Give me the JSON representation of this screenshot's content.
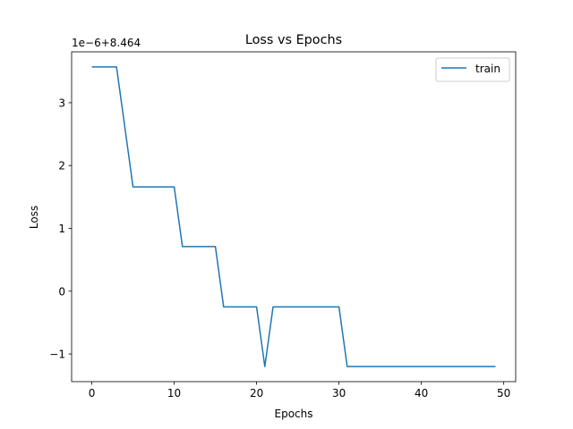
{
  "chart_data": {
    "type": "line",
    "title": "Loss vs Epochs",
    "xlabel": "Epochs",
    "ylabel": "Loss",
    "offset_label": "1e−6+8.464",
    "xlim": [
      -2.45,
      51.45
    ],
    "ylim": [
      -1.44,
      3.81
    ],
    "xticks": [
      0,
      10,
      20,
      30,
      40,
      50
    ],
    "xtick_labels": [
      "0",
      "10",
      "20",
      "30",
      "40",
      "50"
    ],
    "yticks": [
      -1,
      0,
      1,
      2,
      3
    ],
    "ytick_labels": [
      "−1",
      "0",
      "1",
      "2",
      "3"
    ],
    "grid": false,
    "legend": {
      "location": "upper right",
      "entries": [
        "train"
      ]
    },
    "series": [
      {
        "name": "train",
        "color": "#1f77b4",
        "x": [
          0,
          1,
          2,
          3,
          4,
          5,
          6,
          7,
          8,
          9,
          10,
          11,
          12,
          13,
          14,
          15,
          16,
          17,
          18,
          19,
          20,
          21,
          22,
          23,
          24,
          25,
          26,
          27,
          28,
          29,
          30,
          31,
          32,
          33,
          34,
          35,
          36,
          37,
          38,
          39,
          40,
          41,
          42,
          43,
          44,
          45,
          46,
          47,
          48,
          49
        ],
        "y": [
          3.57,
          3.57,
          3.57,
          3.57,
          2.62,
          1.66,
          1.66,
          1.66,
          1.66,
          1.66,
          1.66,
          0.71,
          0.71,
          0.71,
          0.71,
          0.71,
          -0.25,
          -0.25,
          -0.25,
          -0.25,
          -0.25,
          -1.2,
          -0.25,
          -0.25,
          -0.25,
          -0.25,
          -0.25,
          -0.25,
          -0.25,
          -0.25,
          -0.25,
          -1.2,
          -1.2,
          -1.2,
          -1.2,
          -1.2,
          -1.2,
          -1.2,
          -1.2,
          -1.2,
          -1.2,
          -1.2,
          -1.2,
          -1.2,
          -1.2,
          -1.2,
          -1.2,
          -1.2,
          -1.2,
          -1.2
        ]
      }
    ]
  }
}
